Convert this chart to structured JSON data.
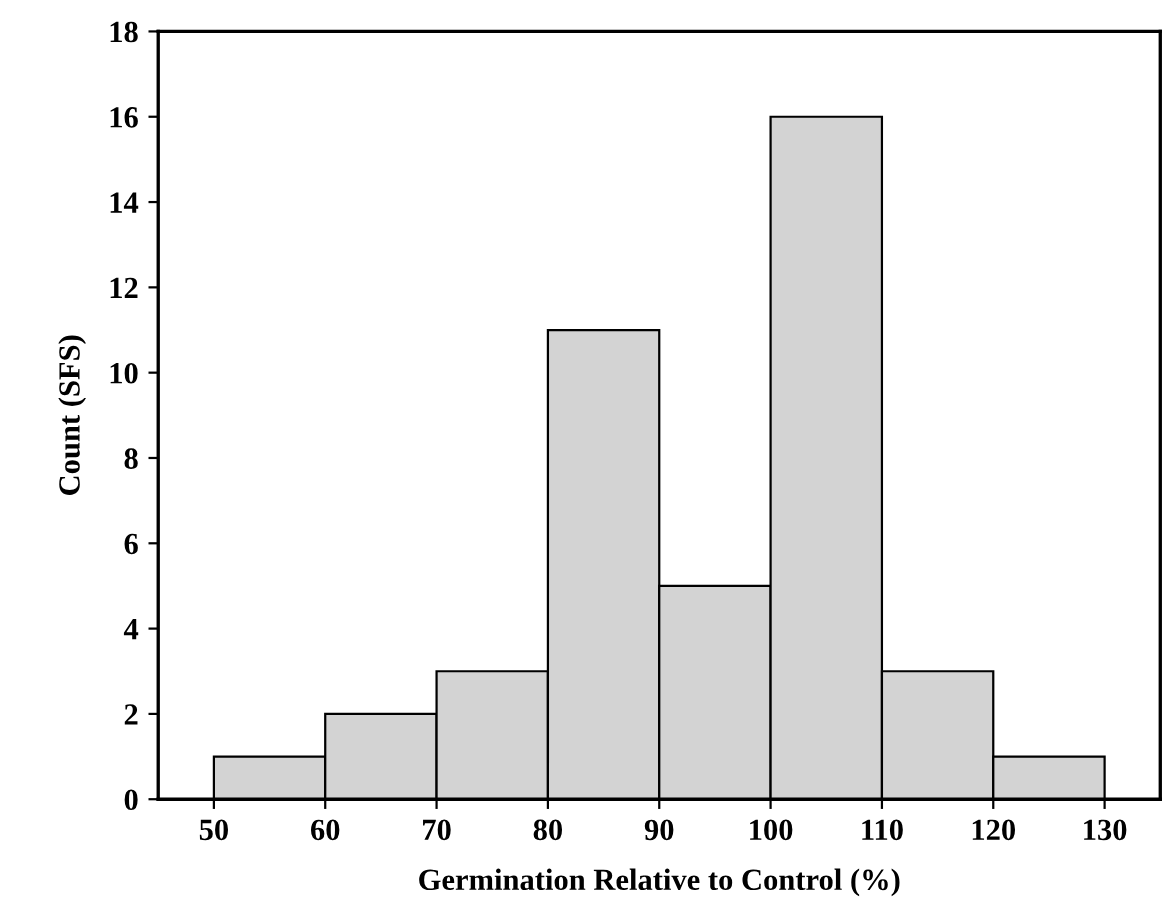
{
  "chart_data": {
    "type": "histogram",
    "xlabel": "Germination Relative to Control (%)",
    "ylabel": "Count (SFS)",
    "bins": [
      50,
      60,
      70,
      80,
      90,
      100,
      110,
      120,
      130
    ],
    "values": [
      1,
      2,
      3,
      11,
      5,
      16,
      3,
      1
    ],
    "color": "#d3d3d3",
    "xlim": [
      45,
      135
    ],
    "xticks": [
      50,
      60,
      70,
      80,
      90,
      100,
      110,
      120,
      130
    ],
    "ylim": [
      0,
      18
    ],
    "yticks": [
      0,
      2,
      4,
      6,
      8,
      10,
      12,
      14,
      16,
      18
    ],
    "grid": false
  }
}
